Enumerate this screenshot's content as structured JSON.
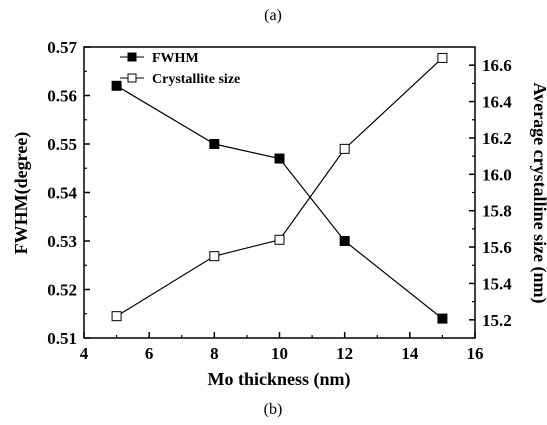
{
  "captions": {
    "top": "(a)",
    "bottom": "(b)"
  },
  "chart_data": {
    "type": "line",
    "xlabel": "Mo thickness (nm)",
    "ylabel_left": "FWHM(degree)",
    "ylabel_right": "Average crystalline size (nm)",
    "xlim": [
      4,
      16
    ],
    "xticks": [
      4,
      6,
      8,
      10,
      12,
      14,
      16
    ],
    "ylim_left": [
      0.51,
      0.57
    ],
    "yticks_left": [
      "0.51",
      "0.52",
      "0.53",
      "0.54",
      "0.55",
      "0.56",
      "0.57"
    ],
    "ylim_right": [
      15.1,
      16.7
    ],
    "yticks_right": [
      "15.2",
      "15.4",
      "15.6",
      "15.8",
      "16.0",
      "16.2",
      "16.4",
      "16.6"
    ],
    "legend_position": "top-left",
    "series": [
      {
        "name": "FWHM",
        "axis": "left",
        "marker": "filled-square",
        "color": "#000000",
        "points": [
          [
            5,
            0.562
          ],
          [
            8,
            0.55
          ],
          [
            10,
            0.547
          ],
          [
            12,
            0.53
          ],
          [
            15,
            0.514
          ]
        ]
      },
      {
        "name": "Crystallite size",
        "axis": "right",
        "marker": "open-square",
        "color": "#000000",
        "points": [
          [
            5,
            15.22
          ],
          [
            8,
            15.55
          ],
          [
            10,
            15.64
          ],
          [
            12,
            16.14
          ],
          [
            15,
            16.64
          ]
        ]
      }
    ]
  }
}
